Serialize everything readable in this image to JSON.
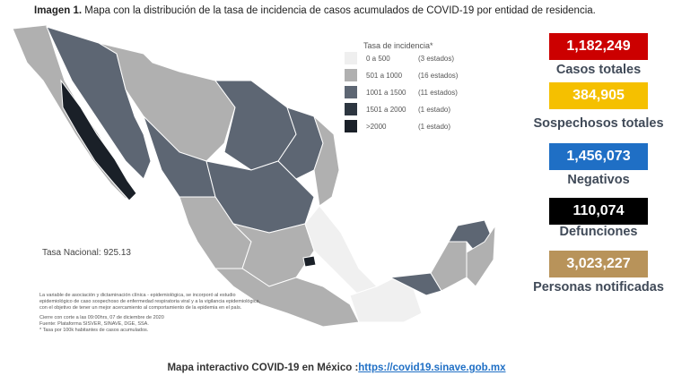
{
  "title": {
    "label": "Imagen 1.",
    "text": "Mapa con la distribución de la tasa de incidencia de casos acumulados de COVID-19 por entidad de residencia."
  },
  "legend": {
    "title": "Tasa de incidencia*",
    "items": [
      {
        "range": "0 a 500",
        "count": "(3 estados)",
        "color": "#efefef"
      },
      {
        "range": "501 a 1000",
        "count": "(16 estados)",
        "color": "#b0b0b0"
      },
      {
        "range": "1001 a 1500",
        "count": "(11 estados)",
        "color": "#5d6673"
      },
      {
        "range": "1501 a 2000",
        "count": "(1 estado)",
        "color": "#2d3640"
      },
      {
        "range": ">2000",
        "count": "(1 estado)",
        "color": "#1a2028"
      }
    ]
  },
  "national_rate": "Tasa Nacional: 925.13",
  "notes": [
    "La variable de asociación y dictaminación clínica - epidemiológica, se incorporó al estudio",
    "epidemiológico de caso sospechoso de enfermedad respiratoria viral y a la vigilancia epidemiológica,",
    "con el objetivo de tener un mejor acercamiento al comportamiento de la epidemia en el país.",
    "Cierre con corte a las 09:00hrs, 07 de diciembre de 2020",
    "Fuente: Plataforma SISVER, SINAVE, DGE, SSA.",
    "* Tasa por 100k habitantes de casos acumulados."
  ],
  "stats": [
    {
      "value": "1,182,249",
      "label": "Casos totales",
      "color": "#cc0000"
    },
    {
      "value": "384,905",
      "label": "Sospechosos totales",
      "color": "#f5c000"
    },
    {
      "value": "1,456,073",
      "label": "Negativos",
      "color": "#1f6fc5"
    },
    {
      "value": "110,074",
      "label": "Defunciones",
      "color": "#000000"
    },
    {
      "value": "3,023,227",
      "label": "Personas notificadas",
      "color": "#b8935a"
    }
  ],
  "footer": {
    "text": "Mapa interactivo COVID-19 en México :",
    "link": "https://covid19.sinave.gob.mx"
  }
}
